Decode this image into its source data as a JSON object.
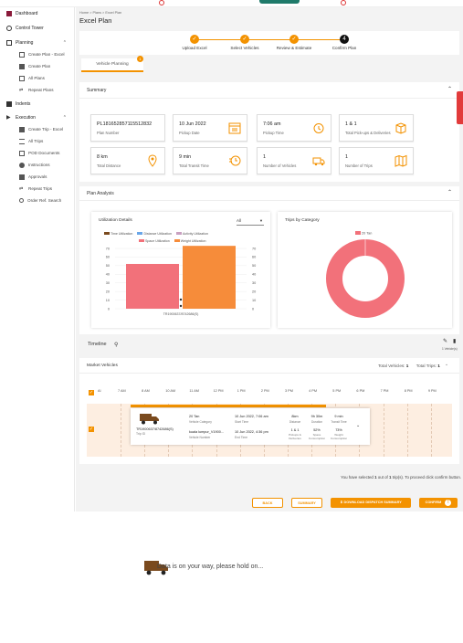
{
  "sidebar": {
    "items": [
      {
        "label": "Dashboard"
      },
      {
        "label": "Control Tower"
      },
      {
        "label": "Planning"
      },
      {
        "label": "Create Plan - Excel"
      },
      {
        "label": "Create Plan"
      },
      {
        "label": "All Plans"
      },
      {
        "label": "Repeat Plans"
      },
      {
        "label": "Indents"
      },
      {
        "label": "Execution"
      },
      {
        "label": "Create Trip - Excel"
      },
      {
        "label": "All Trips"
      },
      {
        "label": "POD Documents"
      },
      {
        "label": "Instructions"
      },
      {
        "label": "Approvals"
      },
      {
        "label": "Repeat Trips"
      },
      {
        "label": "Order Ref. Search"
      }
    ]
  },
  "breadcrumb": {
    "home": "Home",
    "plans": "Plans",
    "current": "Excel Plan",
    "sep": ">"
  },
  "page_title": "Excel Plan",
  "steps": [
    {
      "label": "Upload Excel"
    },
    {
      "label": "Select Vehicles"
    },
    {
      "label": "Review & Estimate"
    },
    {
      "label": "Confirm Plan",
      "num": "4"
    }
  ],
  "tab": {
    "label": "Vehicle Planning",
    "badge": "1"
  },
  "summary": {
    "title": "Summary",
    "cards": [
      {
        "value": "PL181652857115512832",
        "label": "Plan Number"
      },
      {
        "value": "10 Jun 2022",
        "label": "Pickup Date"
      },
      {
        "value": "7:06 am",
        "label": "Pickup Time"
      },
      {
        "value": "1 & 1",
        "label": "Total Pick-ups & Deliveries"
      },
      {
        "value": "8 km",
        "label": "Total Distance"
      },
      {
        "value": "9 min",
        "label": "Total Transit Time"
      },
      {
        "value": "1",
        "label": "Number of Vehicles"
      },
      {
        "value": "1",
        "label": "Number of Trips"
      }
    ]
  },
  "plan_analysis": {
    "title": "Plan Analysis"
  },
  "utilization": {
    "title": "Utilization Details",
    "select_value": "All",
    "legend": [
      "Time Utilization",
      "Distance Utilization",
      "Activity Utilization",
      "Space Utilization",
      "Weight Utilization"
    ],
    "category": "TR1900637/8742686(S)",
    "colors": {
      "time": "#7a4a1e",
      "distance": "#6aa6e8",
      "activity": "#c9a0c0",
      "space": "#f2717a",
      "weight": "#f68c3a"
    }
  },
  "trips_by_category": {
    "title": "Trips by Category",
    "legend": "20 Tan",
    "color": "#f2717a"
  },
  "chart_data": [
    {
      "type": "bar",
      "title": "Utilization Details",
      "categories": [
        "TR1900637/8742686(S)"
      ],
      "series": [
        {
          "name": "Space Utilization",
          "values": [
            52
          ]
        },
        {
          "name": "Weight Utilization",
          "values": [
            73
          ]
        }
      ],
      "ylim": [
        0,
        70
      ],
      "yticks": [
        0,
        10,
        20,
        30,
        40,
        50,
        60,
        70
      ]
    },
    {
      "type": "pie",
      "title": "Trips by Category",
      "labels": [
        "20 Tan"
      ],
      "values": [
        1
      ]
    }
  ],
  "timeline": {
    "title": "Timeline",
    "legend_label": "1 Vehicle(s)",
    "market_vehicles": "Market Vehicles",
    "total_vehicles_label": "Total Vehicles:",
    "total_vehicles": "1",
    "total_trips_label": "Total Trips:",
    "total_trips": "1",
    "hours": [
      "7 AM",
      "8 AM",
      "10 AM",
      "11 AM",
      "12 PM",
      "1 PM",
      "2 PM",
      "3 PM",
      "4 PM",
      "5 PM",
      "6 PM",
      "7 PM",
      "8 PM",
      "9 PM"
    ],
    "row_label": "AI"
  },
  "trip_card": {
    "trip_id": "TR1900637/8742686(S)",
    "trip_label": "Trip ID",
    "vehicle_category": "20 Tan",
    "vehicle_category_label": "Vehicle Category",
    "vehicle_number": "kuala lumpur_V1900...",
    "vehicle_number_label": "Vehicle Number",
    "start_time": "10 Jun 2022, 7:06 am",
    "start_label": "Start Time",
    "end_time": "10 Jun 2022, 4:36 pm",
    "end_label": "End Time",
    "distance": "8km",
    "distance_label": "Distance",
    "duration": "9h 30m",
    "duration_label": "Duration",
    "transit": "9 min",
    "transit_label": "Transit Time",
    "pickups": "1 & 1",
    "pickups_label": "Pickups & Deliveries",
    "space": "52%",
    "space_label": "Space Consumption",
    "weight": "73%",
    "weight_label": "Weight Consumption"
  },
  "selection_text": {
    "pre": "You have selected ",
    "selected": "1",
    "mid": " out of ",
    "total": "1",
    "post": " trip(s). To proceed click confirm button."
  },
  "buttons": {
    "back": "BACK",
    "summary": "SUMMARY",
    "download": "DOWNLOAD DISPATCH SUMMARY",
    "confirm": "CONFIRM"
  },
  "loading_text": "Data is on your way, please hold on..."
}
